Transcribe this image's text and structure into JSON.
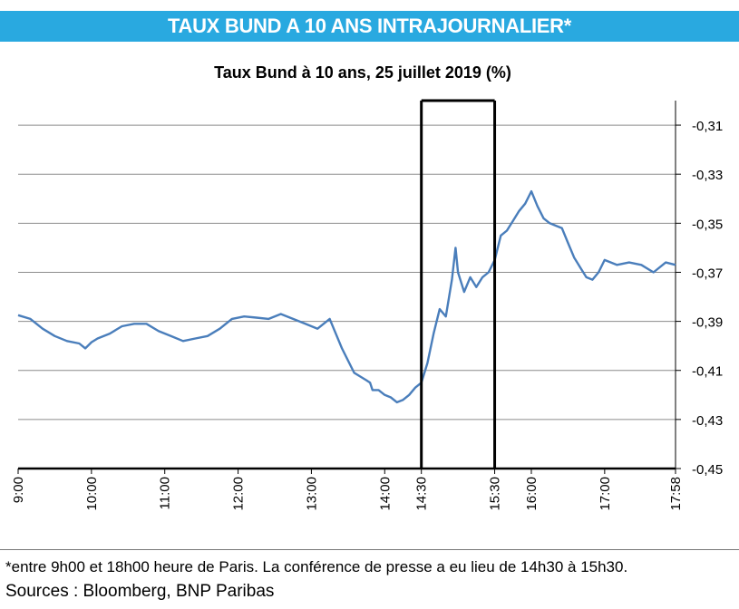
{
  "header": {
    "banner_title": "TAUX BUND A 10 ANS INTRAJOURNALIER*"
  },
  "footer": {
    "note": "*entre 9h00 et 18h00 heure de Paris. La conférence de presse a eu lieu de 14h30 à 15h30.",
    "sources": "Sources : Bloomberg, BNP Paribas"
  },
  "colors": {
    "banner": "#29a9e0",
    "series_line": "#4a7ebb",
    "gridline": "#8c8c8c",
    "highlight_box": "#000000"
  },
  "chart_data": {
    "type": "line",
    "title": "Taux Bund à 10 ans, 25 juillet 2019 (%)",
    "xlabel": "",
    "ylabel": "",
    "y_axis_side": "right",
    "ylim": [
      -0.45,
      -0.3
    ],
    "yticks": [
      -0.31,
      -0.33,
      -0.35,
      -0.37,
      -0.39,
      -0.41,
      -0.43,
      -0.45
    ],
    "ytick_labels": [
      "-0,31",
      "-0,33",
      "-0,35",
      "-0,37",
      "-0,39",
      "-0,41",
      "-0,43",
      "-0,45"
    ],
    "xlim": [
      "9:00",
      "17:58"
    ],
    "xticks": [
      "9:00",
      "10:00",
      "11:00",
      "12:00",
      "13:00",
      "14:00",
      "14:30",
      "15:30",
      "16:00",
      "17:00",
      "17:58"
    ],
    "grid": true,
    "legend": "none",
    "highlight_interval": [
      "14:30",
      "15:30"
    ],
    "x": [
      "9:00",
      "9:10",
      "9:20",
      "9:30",
      "9:40",
      "9:50",
      "9:55",
      "10:00",
      "10:05",
      "10:15",
      "10:25",
      "10:35",
      "10:45",
      "10:55",
      "11:05",
      "11:15",
      "11:25",
      "11:35",
      "11:45",
      "11:55",
      "12:05",
      "12:15",
      "12:25",
      "12:35",
      "12:45",
      "12:55",
      "13:05",
      "13:15",
      "13:25",
      "13:35",
      "13:45",
      "13:48",
      "13:50",
      "13:55",
      "14:00",
      "14:05",
      "14:10",
      "14:15",
      "14:20",
      "14:25",
      "14:30",
      "14:35",
      "14:40",
      "14:45",
      "14:50",
      "14:55",
      "14:58",
      "15:00",
      "15:05",
      "15:10",
      "15:15",
      "15:20",
      "15:25",
      "15:30",
      "15:35",
      "15:40",
      "15:45",
      "15:50",
      "15:55",
      "16:00",
      "16:05",
      "16:10",
      "16:15",
      "16:20",
      "16:25",
      "16:30",
      "16:35",
      "16:40",
      "16:45",
      "16:50",
      "16:55",
      "17:00",
      "17:10",
      "17:20",
      "17:30",
      "17:40",
      "17:50",
      "17:58"
    ],
    "series": [
      {
        "values": [
          -0.3875,
          -0.389,
          -0.393,
          -0.396,
          -0.398,
          -0.399,
          -0.401,
          -0.3985,
          -0.397,
          -0.395,
          -0.392,
          -0.391,
          -0.391,
          -0.394,
          -0.396,
          -0.398,
          -0.397,
          -0.396,
          -0.393,
          -0.389,
          -0.388,
          -0.3885,
          -0.389,
          -0.387,
          -0.389,
          -0.391,
          -0.393,
          -0.389,
          -0.401,
          -0.411,
          -0.414,
          -0.415,
          -0.418,
          -0.418,
          -0.42,
          -0.421,
          -0.423,
          -0.422,
          -0.42,
          -0.417,
          -0.415,
          -0.407,
          -0.395,
          -0.385,
          -0.388,
          -0.373,
          -0.36,
          -0.37,
          -0.378,
          -0.372,
          -0.376,
          -0.372,
          -0.37,
          -0.365,
          -0.355,
          -0.353,
          -0.349,
          -0.345,
          -0.342,
          -0.337,
          -0.343,
          -0.348,
          -0.35,
          -0.351,
          -0.352,
          -0.358,
          -0.364,
          -0.368,
          -0.372,
          -0.373,
          -0.37,
          -0.365,
          -0.367,
          -0.366,
          -0.367,
          -0.37,
          -0.366,
          -0.367
        ]
      }
    ]
  }
}
